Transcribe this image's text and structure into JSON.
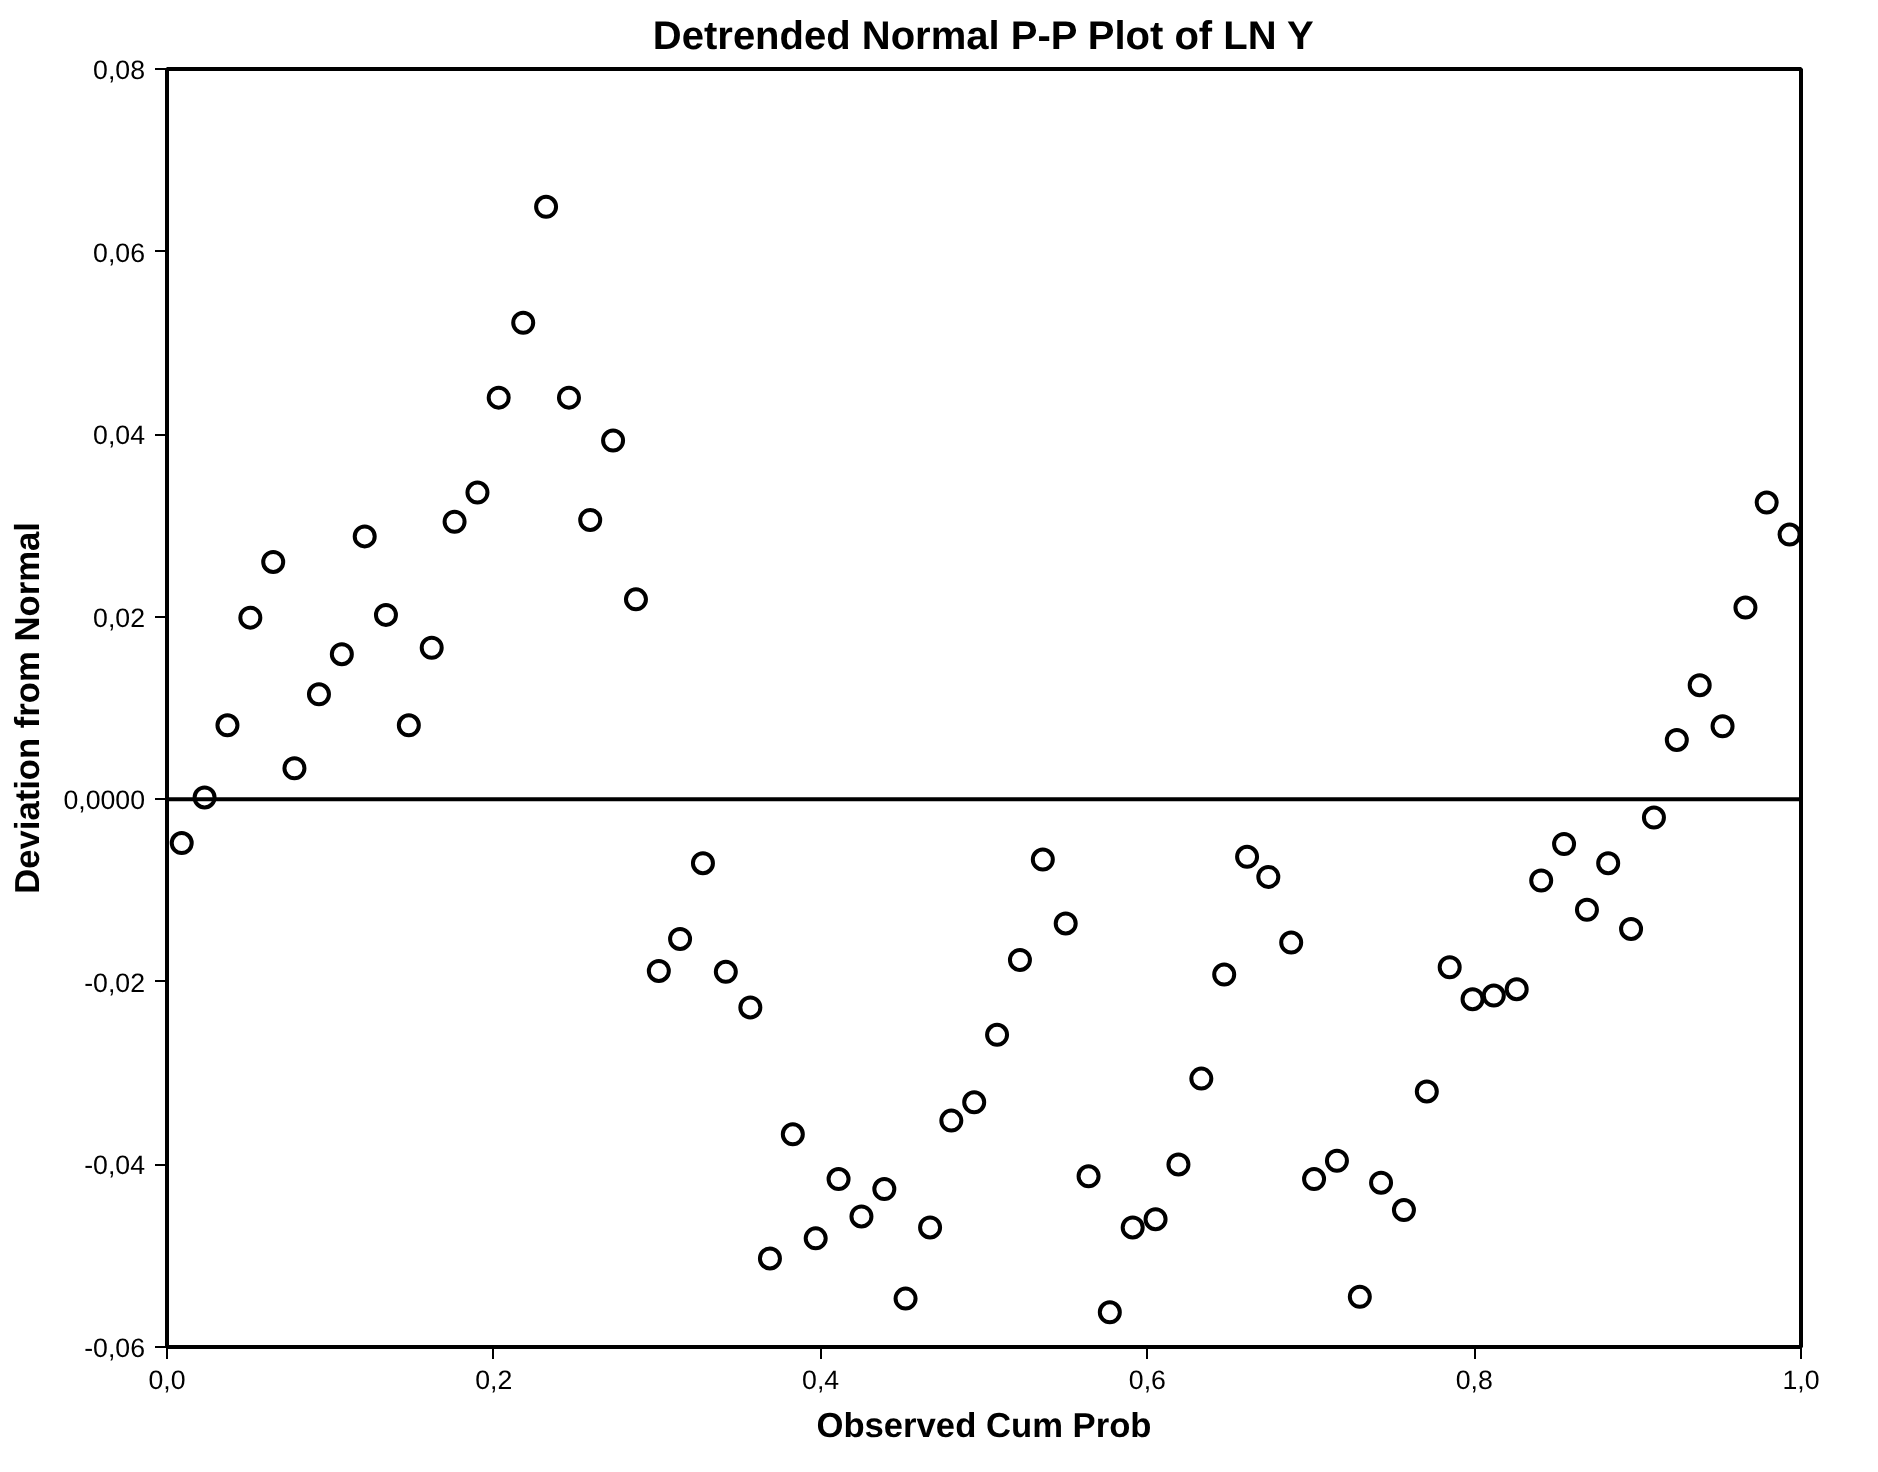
{
  "chart_data": {
    "type": "scatter",
    "title": "Detrended Normal P-P Plot of LN Y",
    "xlabel": "Observed Cum Prob",
    "ylabel": "Deviation from Normal",
    "x": [
      0.009,
      0.023,
      0.037,
      0.051,
      0.065,
      0.078,
      0.093,
      0.107,
      0.121,
      0.134,
      0.148,
      0.162,
      0.176,
      0.19,
      0.203,
      0.218,
      0.232,
      0.246,
      0.259,
      0.273,
      0.287,
      0.301,
      0.314,
      0.328,
      0.342,
      0.357,
      0.369,
      0.383,
      0.397,
      0.411,
      0.425,
      0.439,
      0.452,
      0.467,
      0.48,
      0.494,
      0.508,
      0.522,
      0.536,
      0.55,
      0.564,
      0.577,
      0.591,
      0.605,
      0.619,
      0.633,
      0.647,
      0.661,
      0.674,
      0.688,
      0.702,
      0.716,
      0.73,
      0.743,
      0.757,
      0.771,
      0.785,
      0.799,
      0.812,
      0.826,
      0.841,
      0.855,
      0.869,
      0.882,
      0.896,
      0.91,
      0.924,
      0.938,
      0.952,
      0.966,
      0.979,
      0.993
    ],
    "values": [
      -0.0048,
      0.0002,
      0.0081,
      0.0199,
      0.026,
      0.0034,
      0.0115,
      0.0159,
      0.0288,
      0.0202,
      0.0081,
      0.0166,
      0.0304,
      0.0336,
      0.044,
      0.0522,
      0.0649,
      0.044,
      0.0306,
      0.0393,
      0.0219,
      -0.0188,
      -0.0153,
      -0.007,
      -0.0189,
      -0.0228,
      -0.0503,
      -0.0367,
      -0.0481,
      -0.0416,
      -0.0457,
      -0.0427,
      -0.0547,
      -0.0469,
      -0.0352,
      -0.0332,
      -0.0258,
      -0.0176,
      -0.0066,
      -0.0136,
      -0.0413,
      -0.0562,
      -0.0469,
      -0.046,
      -0.04,
      -0.0306,
      -0.0192,
      -0.0063,
      -0.0085,
      -0.0157,
      -0.0416,
      -0.0396,
      -0.0545,
      -0.042,
      -0.045,
      -0.032,
      -0.0184,
      -0.0219,
      -0.0215,
      -0.0208,
      -0.0089,
      -0.0049,
      -0.0121,
      -0.007,
      -0.0142,
      -0.002,
      0.0065,
      0.0125,
      0.008,
      0.021,
      0.0325,
      0.029
    ],
    "color": "#000000",
    "marker": "circle",
    "grid": false,
    "xlim": [
      0.0,
      1.0
    ],
    "xticks": [
      {
        "value": 0.0,
        "label": "0,0"
      },
      {
        "value": 0.2,
        "label": "0,2"
      },
      {
        "value": 0.4,
        "label": "0,4"
      },
      {
        "value": 0.6,
        "label": "0,6"
      },
      {
        "value": 0.8,
        "label": "0,8"
      },
      {
        "value": 1.0,
        "label": "1,0"
      }
    ],
    "ylim": [
      -0.06,
      0.08
    ],
    "yticks": [
      {
        "value": -0.06,
        "label": "-0,06"
      },
      {
        "value": -0.04,
        "label": "-0,04"
      },
      {
        "value": -0.02,
        "label": "-0,02"
      },
      {
        "value": 0.0,
        "label": "0,0000"
      },
      {
        "value": 0.02,
        "label": "0,02"
      },
      {
        "value": 0.04,
        "label": "0,04"
      },
      {
        "value": 0.06,
        "label": "0,06"
      },
      {
        "value": 0.08,
        "label": "0,08"
      }
    ],
    "ref_lines": [
      {
        "axis": "y",
        "value": 0.0,
        "color": "#000000",
        "line_style": "solid"
      }
    ]
  }
}
